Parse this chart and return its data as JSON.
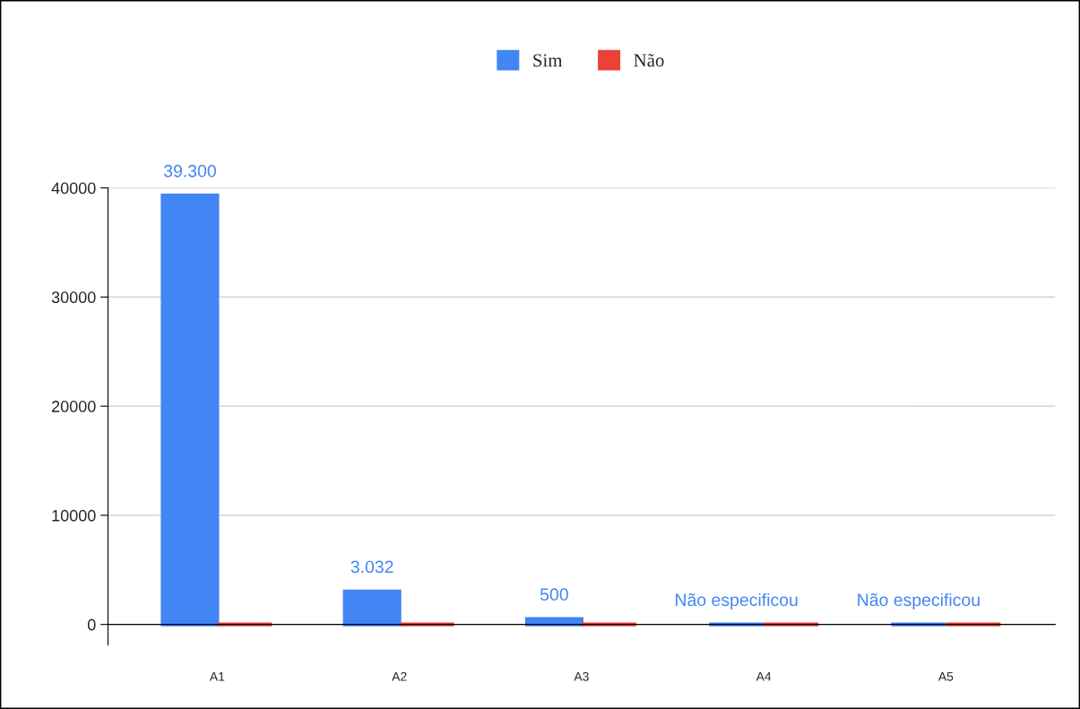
{
  "chart_data": {
    "type": "bar",
    "categories": [
      "A1",
      "A2",
      "A3",
      "A4",
      "A5"
    ],
    "series": [
      {
        "name": "Sim",
        "color": "#4285f4",
        "values": [
          39300,
          3032,
          500,
          0,
          0
        ],
        "value_labels": [
          "39.300",
          "3.032",
          "500",
          "Não especificou",
          "Não especificou"
        ]
      },
      {
        "name": "Não",
        "color": "#ea4335",
        "values": [
          0,
          0,
          0,
          0,
          0
        ]
      }
    ],
    "ylim": [
      -1900,
      40000
    ],
    "yticks": [
      0,
      10000,
      20000,
      30000,
      40000
    ],
    "grid": "y",
    "legend": "top"
  }
}
